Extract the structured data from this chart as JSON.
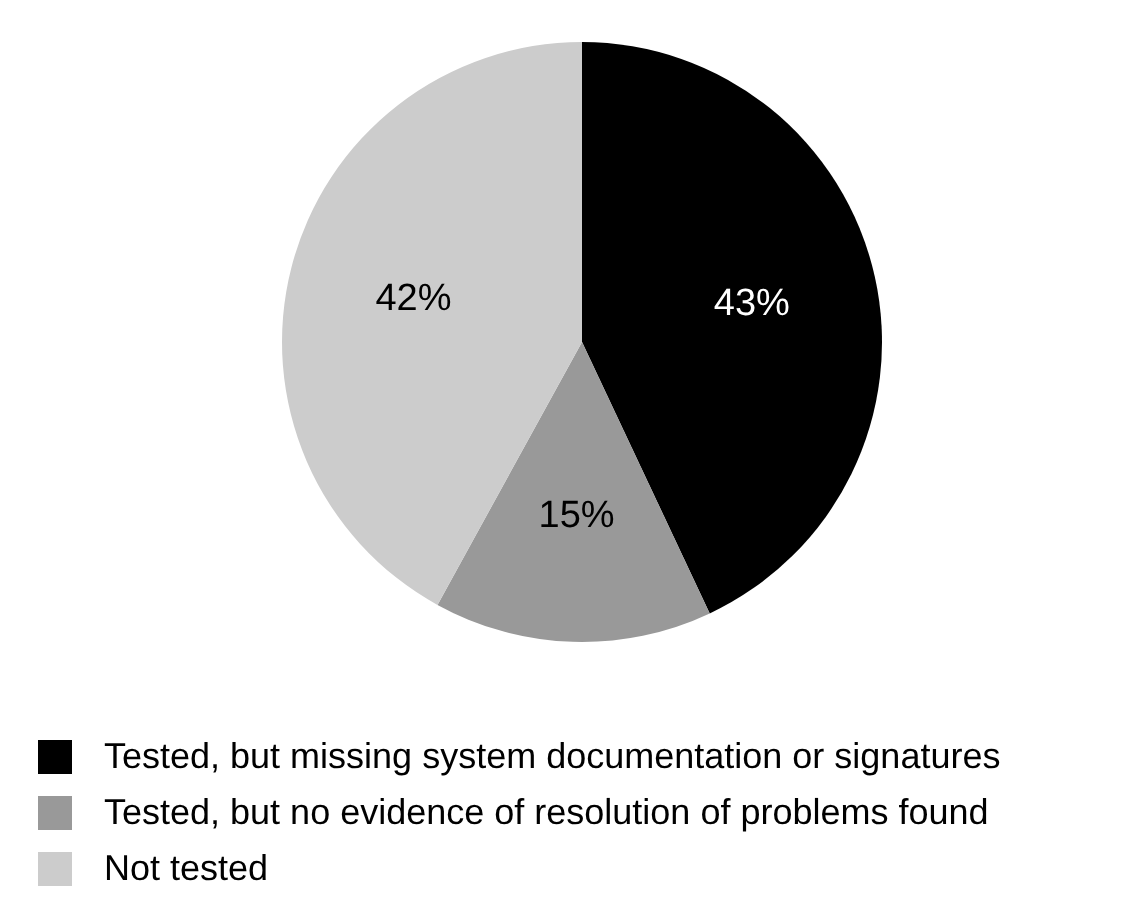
{
  "chart_data": {
    "type": "pie",
    "categories": [
      "Tested, but missing system documentation or signatures",
      "Tested, but no evidence of resolution of problems found",
      "Not tested"
    ],
    "values": [
      43,
      15,
      42
    ],
    "colors": [
      "#000000",
      "#999999",
      "#cccccc"
    ],
    "value_labels": [
      "43%",
      "15%",
      "42%"
    ],
    "legend": "bottom left"
  }
}
